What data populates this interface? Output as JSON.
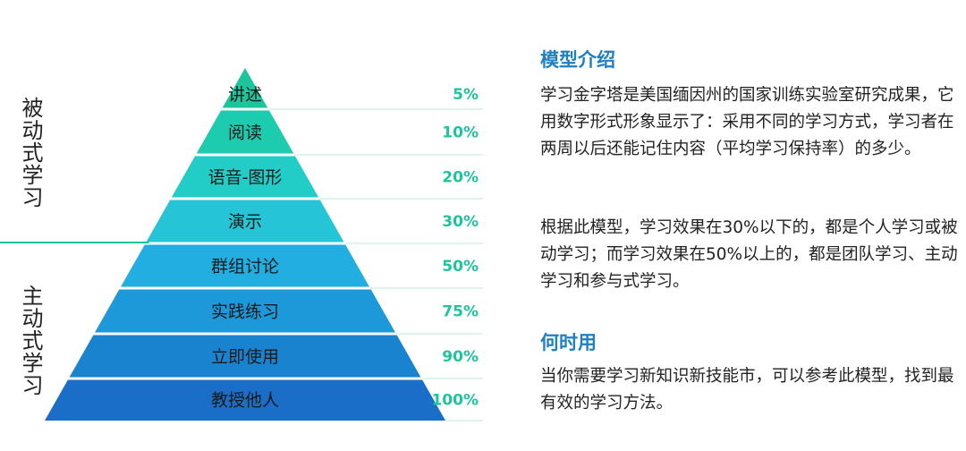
{
  "pyramid": {
    "levels": [
      {
        "label": "讲述",
        "percent": "5%",
        "color": "#1cc59c"
      },
      {
        "label": "阅读",
        "percent": "10%",
        "color": "#1dcbae"
      },
      {
        "label": "语音-图形",
        "percent": "20%",
        "color": "#22ccc7"
      },
      {
        "label": "演示",
        "percent": "30%",
        "color": "#26c4d7"
      },
      {
        "label": "群组讨论",
        "percent": "50%",
        "color": "#22aee0"
      },
      {
        "label": "实践练习",
        "percent": "75%",
        "color": "#1d98d9"
      },
      {
        "label": "立即使用",
        "percent": "90%",
        "color": "#1a83cf"
      },
      {
        "label": "教授他人",
        "percent": "100%",
        "color": "#1a6ec7"
      }
    ],
    "percent_color": "#1cc59c",
    "divider_color": "#1cc59c",
    "passive_label": "被动式学习",
    "active_label": "主动式学习"
  },
  "model_intro": {
    "title": "模型介绍",
    "paragraph1": "学习金字塔是美国缅因州的国家训练实验室研究成果，它用数字形式形象显示了：采用不同的学习方式，学习者在两周以后还能记住内容（平均学习保持率）的多少。",
    "paragraph2": "根据此模型，学习效果在30%以下的，都是个人学习或被动学习；而学习效果在50%以上的，都是团队学习、主动学习和参与式学习。"
  },
  "when_to_use": {
    "title": "何时用",
    "paragraph": "当你需要学习新知识新技能市，可以参考此模型，找到最有效的学习方法。"
  },
  "heading_color": "#1e7fc4"
}
